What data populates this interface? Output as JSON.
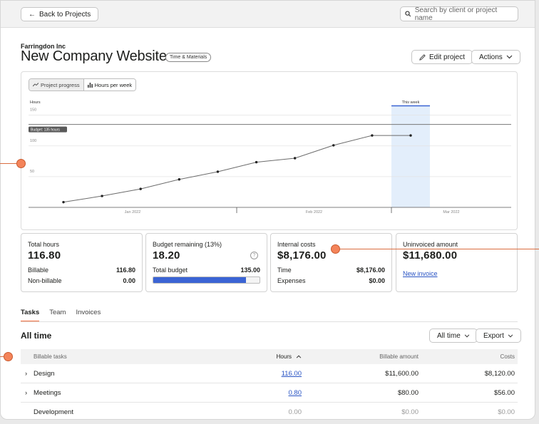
{
  "topbar": {
    "back_label": "Back to Projects",
    "search_placeholder": "Search by client or project name"
  },
  "project": {
    "client": "Farringdon Inc",
    "title": "New Company Website",
    "badge": "Time & Materials",
    "edit_label": "Edit project",
    "actions_label": "Actions"
  },
  "chart_toggle": {
    "progress_label": "Project progress",
    "hours_label": "Hours per week"
  },
  "chart_data": {
    "type": "line",
    "ylabel": "Hours",
    "yticks": [
      50,
      100,
      150
    ],
    "ylim": [
      0,
      160
    ],
    "xticks": [
      "Jan 2022",
      "Feb 2022",
      "Mar 2022"
    ],
    "budget": 135,
    "budget_label": "Budget: 135 hours",
    "highlight_label": "This week",
    "series": [
      {
        "values": [
          8.5,
          18.5,
          30,
          45.5,
          58,
          73.5,
          80,
          101,
          117,
          117
        ]
      }
    ]
  },
  "cards": {
    "total_hours": {
      "label": "Total hours",
      "value": "116.80",
      "billable_label": "Billable",
      "billable": "116.80",
      "nonbillable_label": "Non-billable",
      "nonbillable": "0.00"
    },
    "budget": {
      "label": "Budget remaining (13%)",
      "value": "18.20",
      "total_label": "Total budget",
      "total": "135.00",
      "used_fraction": 0.87,
      "help": "?"
    },
    "internal": {
      "label": "Internal costs",
      "value": "$8,176.00",
      "time_label": "Time",
      "time": "$8,176.00",
      "expenses_label": "Expenses",
      "expenses": "$0.00"
    },
    "uninvoiced": {
      "label": "Uninvoiced amount",
      "value": "$11,680.00",
      "link": "New invoice"
    }
  },
  "tabs": [
    "Tasks",
    "Team",
    "Invoices"
  ],
  "section": {
    "title": "All time",
    "period_label": "All time",
    "export_label": "Export"
  },
  "table": {
    "headers": {
      "name": "Billable tasks",
      "hours": "Hours",
      "billable": "Billable amount",
      "costs": "Costs"
    },
    "rows": [
      {
        "name": "Design",
        "hours": "116.00",
        "billable": "$11,600.00",
        "costs": "$8,120.00"
      },
      {
        "name": "Meetings",
        "hours": "0.80",
        "billable": "$80.00",
        "costs": "$56.00"
      },
      {
        "name": "Development",
        "hours": "0.00",
        "billable": "$0.00",
        "costs": "$0.00"
      }
    ]
  },
  "colors": {
    "accent": "#f26b3a",
    "link": "#2b55c4",
    "progress": "#3b64d4",
    "highlight": "#e3eefb"
  }
}
